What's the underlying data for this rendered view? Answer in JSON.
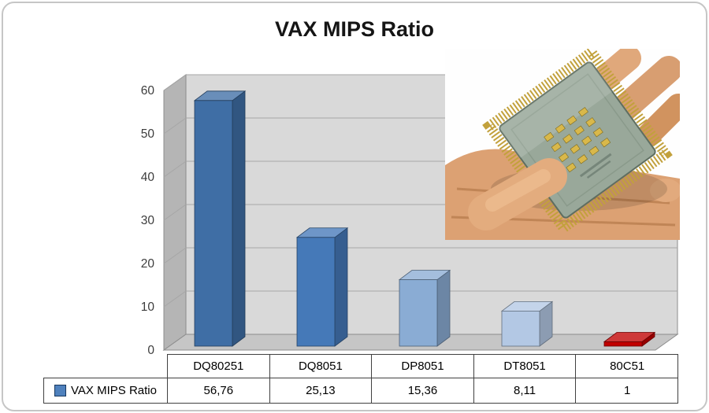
{
  "title": "VAX MIPS Ratio",
  "chart_data": {
    "type": "bar",
    "style": "3d-column",
    "title": "VAX MIPS Ratio",
    "categories": [
      "DQ80251",
      "DQ8051",
      "DP8051",
      "DT8051",
      "80C51"
    ],
    "series": [
      {
        "name": "VAX MIPS Ratio",
        "values": [
          56.76,
          25.13,
          15.36,
          8.11,
          1
        ]
      }
    ],
    "value_labels": [
      "56,76",
      "25,13",
      "15,36",
      "8,11",
      "1"
    ],
    "ylim": [
      0,
      60
    ],
    "y_ticks": [
      0,
      10,
      20,
      30,
      40,
      50,
      60
    ],
    "grid": true,
    "legend_position": "bottom-table",
    "point_colors": [
      "#3F6EA5",
      "#4579B8",
      "#8AACD4",
      "#B3C8E4",
      "#C00000"
    ]
  },
  "legend": {
    "label": "VAX MIPS Ratio",
    "swatch_color": "#4F81BD"
  },
  "icons": {
    "legend_swatch": "blue-square",
    "photo": "hand-holding-cpu-photo"
  },
  "colors": {
    "wall": "#D9D9D9",
    "side_wall": "#B5B5B5",
    "floor": "#C6C6C6",
    "gridline": "#A6A6A6",
    "wall_edge": "#8C8C8C",
    "frame_border": "#C6C6C6",
    "table_border": "#404040",
    "tick_text": "#3D3D3D"
  }
}
